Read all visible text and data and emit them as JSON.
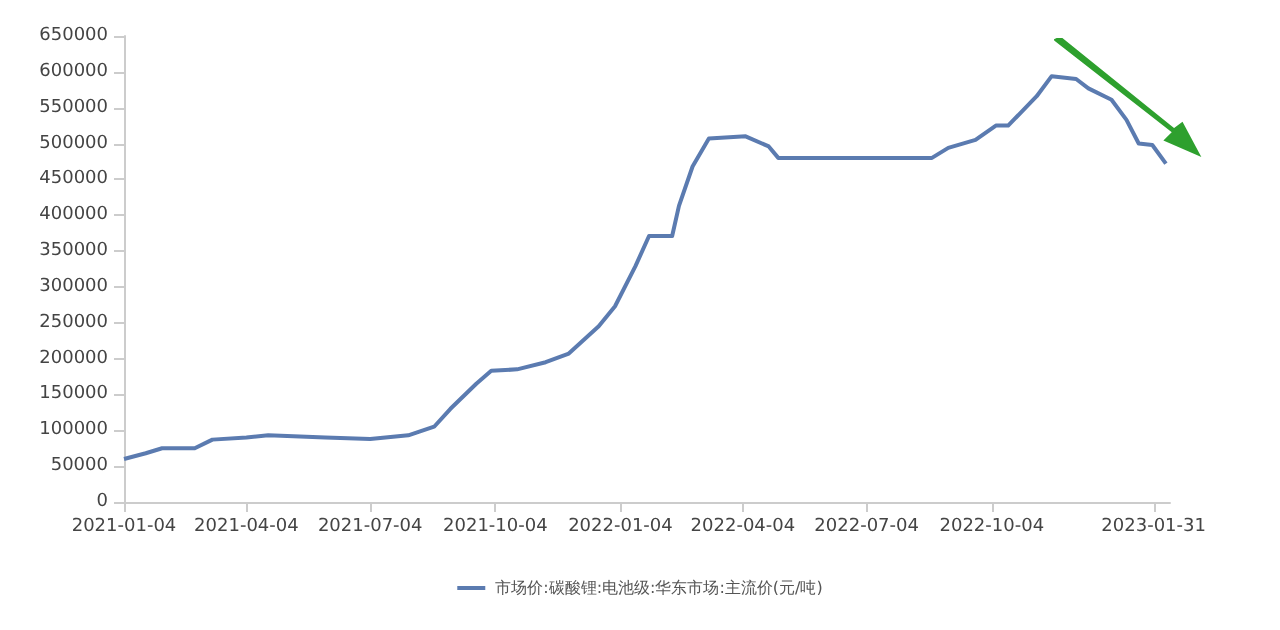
{
  "chart_data": {
    "type": "line",
    "xlim": [
      "2021-01-04",
      "2023-02-12"
    ],
    "ylim": [
      0,
      650000
    ],
    "xticks": [
      "2021-01-04",
      "2021-04-04",
      "2021-07-04",
      "2021-10-04",
      "2022-01-04",
      "2022-04-04",
      "2022-07-04",
      "2022-10-04",
      "2023-01-31"
    ],
    "yticks": [
      0,
      50000,
      100000,
      150000,
      200000,
      250000,
      300000,
      350000,
      400000,
      450000,
      500000,
      550000,
      600000,
      650000
    ],
    "grid": false,
    "legend": "bottom",
    "marker": "none",
    "line_style": "solid",
    "series": [
      {
        "name": "市场价:碳酸锂:电池级:华东市场:主流价(元/吨)",
        "color": "#5b7bb0",
        "x": [
          "2021-01-04",
          "2021-01-20",
          "2021-02-01",
          "2021-02-25",
          "2021-03-10",
          "2021-04-04",
          "2021-04-20",
          "2021-06-01",
          "2021-07-04",
          "2021-08-01",
          "2021-08-20",
          "2021-09-01",
          "2021-09-20",
          "2021-10-01",
          "2021-10-20",
          "2021-11-10",
          "2021-11-27",
          "2021-12-19",
          "2021-12-31",
          "2022-01-15",
          "2022-01-25",
          "2022-02-11",
          "2022-02-16",
          "2022-02-26",
          "2022-03-10",
          "2022-04-06",
          "2022-04-23",
          "2022-04-30",
          "2022-08-21",
          "2022-09-02",
          "2022-09-22",
          "2022-10-07",
          "2022-10-16",
          "2022-11-06",
          "2022-11-17",
          "2022-12-05",
          "2022-12-14",
          "2022-12-31",
          "2023-01-11",
          "2023-01-20",
          "2023-01-30",
          "2023-02-09"
        ],
        "values": [
          60000,
          68000,
          75000,
          75000,
          87000,
          90000,
          93000,
          90000,
          88000,
          93000,
          105000,
          130000,
          165000,
          183000,
          185000,
          195000,
          207000,
          245000,
          273000,
          329000,
          371000,
          371000,
          413000,
          468000,
          507000,
          510000,
          496000,
          480000,
          480000,
          494000,
          505000,
          525000,
          525000,
          566000,
          594000,
          590000,
          577000,
          561000,
          533000,
          500000,
          498000,
          472000
        ]
      }
    ]
  }
}
